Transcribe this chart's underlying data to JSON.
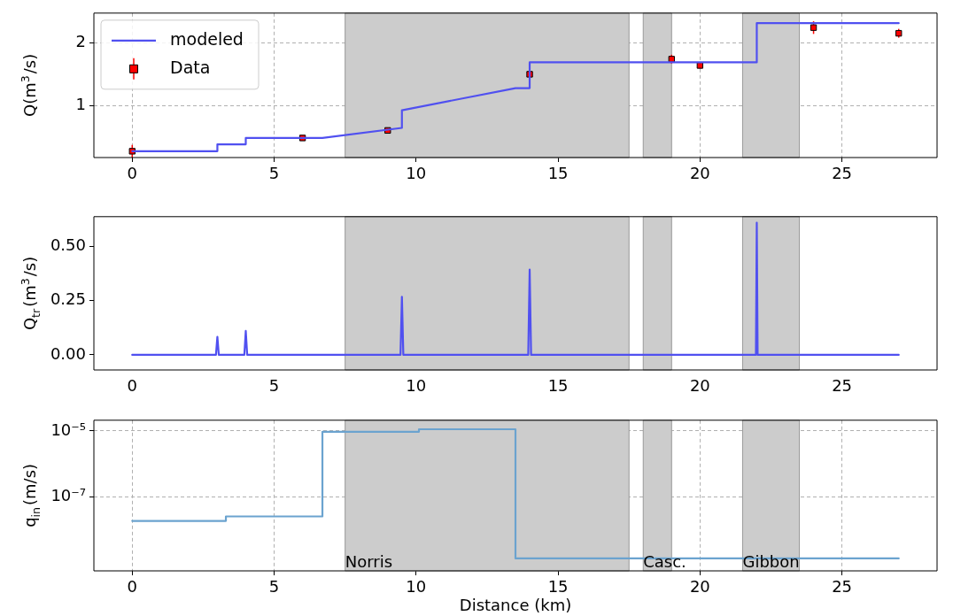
{
  "chart_data": [
    {
      "type": "line",
      "ylabel": "Q(m$^{3}$/s)",
      "xlim": [
        -1.35,
        28.35
      ],
      "xticks": [
        0,
        5,
        10,
        15,
        20,
        25
      ],
      "ylim": [
        0.18,
        2.47
      ],
      "yticks": [
        1,
        2
      ],
      "grid": true,
      "legend": "top left",
      "bands": [
        {
          "axis": "x",
          "from": 7.5,
          "to": 17.5,
          "color": "#cccccc"
        },
        {
          "axis": "x",
          "from": 18,
          "to": 19,
          "color": "#cccccc"
        },
        {
          "axis": "x",
          "from": 21.5,
          "to": 23.5,
          "color": "#cccccc"
        }
      ],
      "series": [
        {
          "name": "modeled",
          "type": "line",
          "color": "#5050f0",
          "line_style": "solid",
          "marker": "none",
          "x": [
            0,
            3,
            3,
            4,
            4,
            6.7,
            9.5,
            9.5,
            13.5,
            14,
            14,
            22,
            22,
            27
          ],
          "values": [
            0.28,
            0.28,
            0.39,
            0.39,
            0.49,
            0.49,
            0.65,
            0.93,
            1.28,
            1.28,
            1.69,
            1.69,
            2.31,
            2.31
          ]
        },
        {
          "name": "Data",
          "type": "scatter",
          "color": "#ff0000",
          "marker": "square",
          "x": [
            0,
            6,
            9,
            14,
            19,
            20,
            24,
            27
          ],
          "values": [
            0.28,
            0.49,
            0.61,
            1.5,
            1.74,
            1.64,
            2.24,
            2.15
          ],
          "errors": [
            0.1,
            0.03,
            0.03,
            0.05,
            0.07,
            0.05,
            0.1,
            0.07
          ]
        }
      ]
    },
    {
      "type": "line",
      "ylabel": "Q$_{tr}$(m$^{3}$/s)",
      "xlim": [
        -1.35,
        28.35
      ],
      "xticks": [
        0,
        5,
        10,
        15,
        20,
        25
      ],
      "ylim": [
        -0.07,
        0.638
      ],
      "yticks": [
        {
          "value": 0,
          "label": "0.00"
        },
        {
          "value": 0.25,
          "label": "0.25"
        },
        {
          "value": 0.5,
          "label": "0.50"
        }
      ],
      "grid": false,
      "bands": [
        {
          "axis": "x",
          "from": 7.5,
          "to": 17.5,
          "color": "#cccccc"
        },
        {
          "axis": "x",
          "from": 18,
          "to": 19,
          "color": "#cccccc"
        },
        {
          "axis": "x",
          "from": 21.5,
          "to": 23.5,
          "color": "#cccccc"
        }
      ],
      "series": [
        {
          "color": "#5050f0",
          "line_style": "solid",
          "marker": "none",
          "x": [
            0,
            2.95,
            3,
            3.05,
            3.95,
            4,
            4.05,
            9.45,
            9.5,
            9.55,
            13.95,
            14,
            14.05,
            21.97,
            22,
            22.03,
            27
          ],
          "values": [
            0,
            0,
            0.083,
            0,
            0,
            0.11,
            0,
            0,
            0.268,
            0,
            0,
            0.394,
            0,
            0,
            0.61,
            0,
            0
          ]
        }
      ]
    },
    {
      "type": "step",
      "xlabel": "Distance (km)",
      "ylabel": "q$_{in}$(m/s)",
      "log": "y",
      "xlim": [
        -1.35,
        28.35
      ],
      "xticks": [
        0,
        5,
        10,
        15,
        20,
        25
      ],
      "ylim": [
        5.9e-10,
        2.1e-05
      ],
      "yticks": [
        {
          "value": 1e-05,
          "label": "10⁻⁵"
        },
        {
          "value": 1e-07,
          "label": "10⁻⁷"
        }
      ],
      "grid": true,
      "bands": [
        {
          "axis": "x",
          "from": 7.5,
          "to": 17.5,
          "color": "#cccccc",
          "label": "Norris"
        },
        {
          "axis": "x",
          "from": 18,
          "to": 19,
          "color": "#cccccc",
          "label": "Casc."
        },
        {
          "axis": "x",
          "from": 21.5,
          "to": 23.5,
          "color": "#cccccc",
          "label": "Gibbon"
        }
      ],
      "series": [
        {
          "color": "#6ba3cf",
          "line_style": "solid",
          "marker": "none",
          "x": [
            0,
            3.3,
            6.7,
            10.1,
            13.5,
            27
          ],
          "values": [
            1.9e-08,
            2.6e-08,
            9.4e-06,
            1.12e-05,
            1.4e-09,
            1.4e-09
          ]
        }
      ]
    }
  ]
}
